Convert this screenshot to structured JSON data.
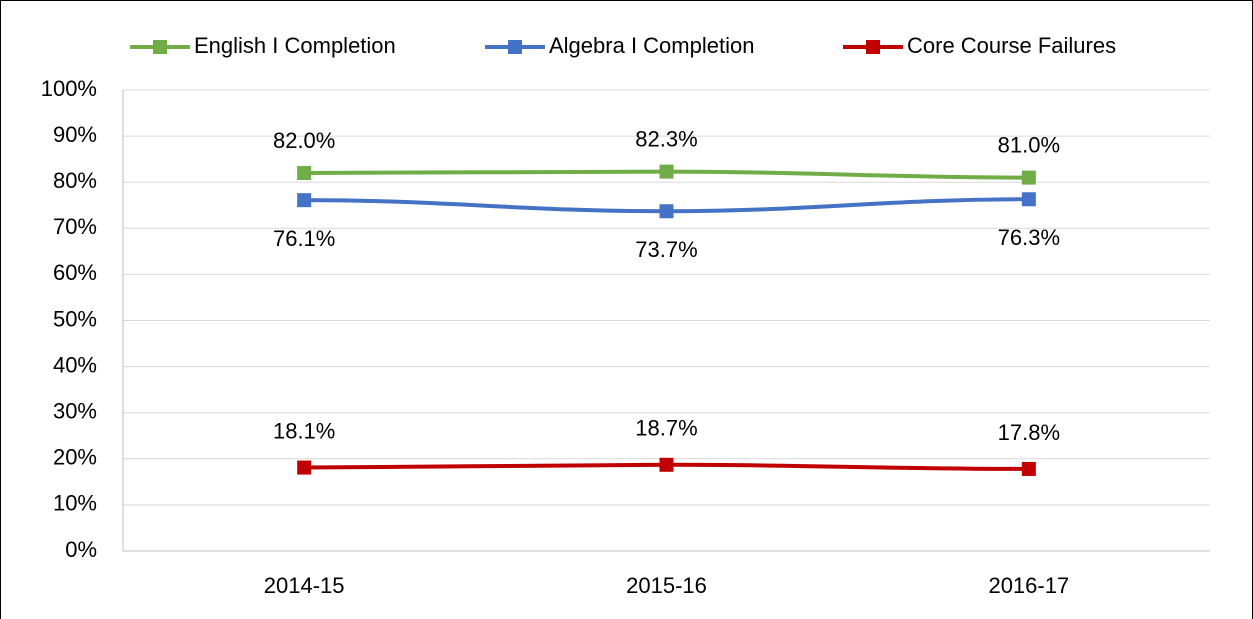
{
  "chart_data": {
    "type": "line",
    "categories": [
      "2014-15",
      "2015-16",
      "2016-17"
    ],
    "series": [
      {
        "name": "English I Completion",
        "color": "#70ad47",
        "values": [
          82.0,
          82.3,
          81.0
        ],
        "value_labels": [
          "82.0%",
          "82.3%",
          "81.0%"
        ]
      },
      {
        "name": "Algebra I Completion",
        "color": "#4472c4",
        "values": [
          76.1,
          73.7,
          76.3
        ],
        "value_labels": [
          "76.1%",
          "73.7%",
          "76.3%"
        ]
      },
      {
        "name": "Core Course Failures",
        "color": "#c00000",
        "values": [
          18.1,
          18.7,
          17.8
        ],
        "value_labels": [
          "18.1%",
          "18.7%",
          "17.8%"
        ]
      }
    ],
    "ylim": [
      0,
      100
    ],
    "yticks": [
      {
        "value": 0,
        "label": "0%"
      },
      {
        "value": 10,
        "label": "10%"
      },
      {
        "value": 20,
        "label": "20%"
      },
      {
        "value": 30,
        "label": "30%"
      },
      {
        "value": 40,
        "label": "40%"
      },
      {
        "value": 50,
        "label": "50%"
      },
      {
        "value": 60,
        "label": "60%"
      },
      {
        "value": 70,
        "label": "70%"
      },
      {
        "value": 80,
        "label": "80%"
      },
      {
        "value": 90,
        "label": "90%"
      },
      {
        "value": 100,
        "label": "100%"
      }
    ],
    "grid": true,
    "legend": "top"
  }
}
